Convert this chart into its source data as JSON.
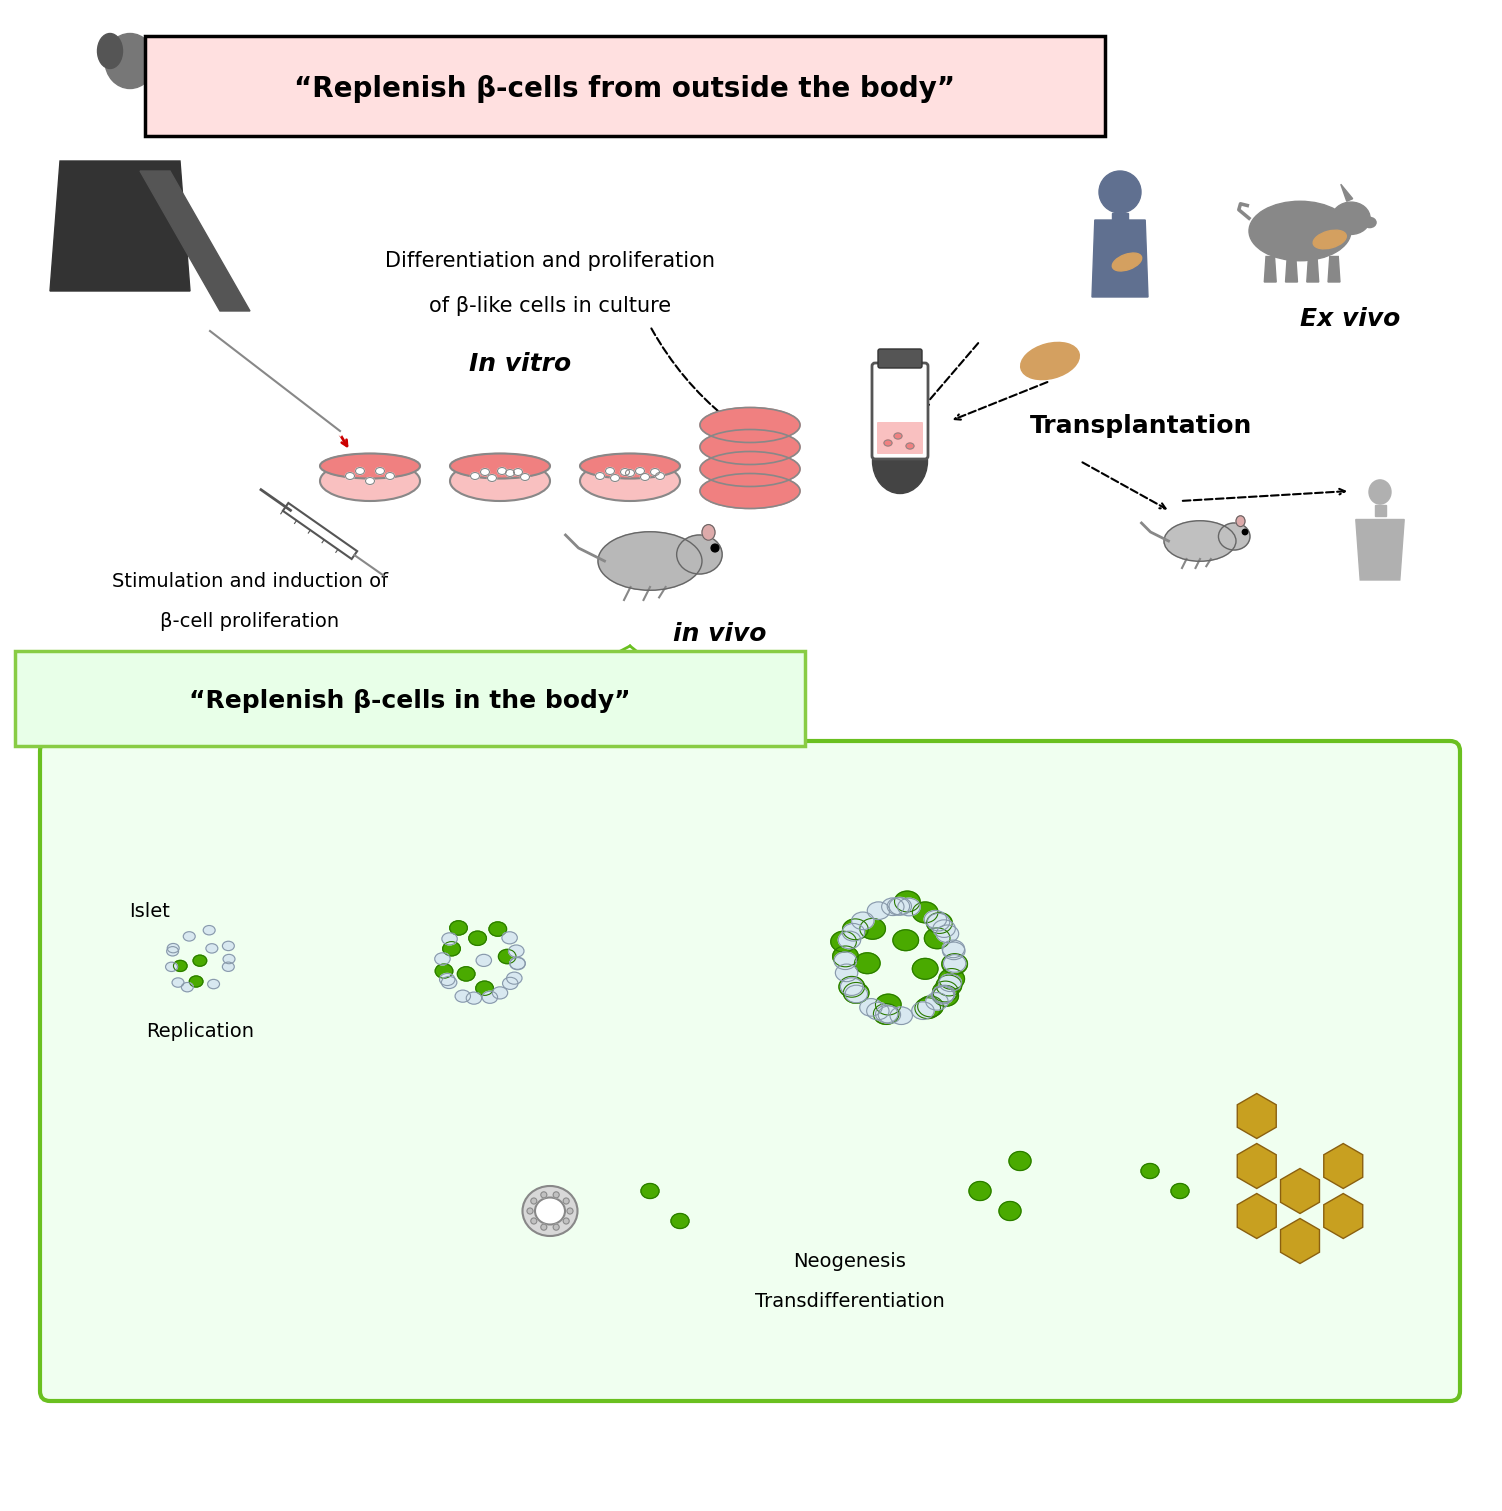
{
  "fig_width": 15.02,
  "fig_height": 15.11,
  "background_color": "#ffffff",
  "title_top": "“Replenish β-cells from outside the body”",
  "title_bottom": "“Replenish β-cells in the body”",
  "title_top_bg": "#ffe0e0",
  "title_bottom_bg": "#e0ffe0",
  "title_border": "#000000",
  "text_invitro": "In vitro",
  "text_exvivo": "Ex vivo",
  "text_invivo": "in vivo",
  "text_transplantation": "Transplantation",
  "text_diff_prolif": "Differentiation and proliferation\nof β-like cells in culture",
  "text_stim": "Stimulation and induction of\nβ-cell proliferation",
  "text_islet": "Islet",
  "text_replication": "Replication",
  "text_neogenesis": "Neogenesis\nTransdifferentiation",
  "green_color": "#4aaa00",
  "green_dark": "#3a8a00",
  "pink_color": "#f9a0a0",
  "pink_light": "#ffd0d0",
  "gray_cell": "#c8d8e8",
  "gray_dark": "#555555",
  "gray_medium": "#888888",
  "gray_light": "#aaaaaa",
  "tan_color": "#d4a060",
  "gold_color": "#c8a020",
  "box_green_border": "#6ac020"
}
